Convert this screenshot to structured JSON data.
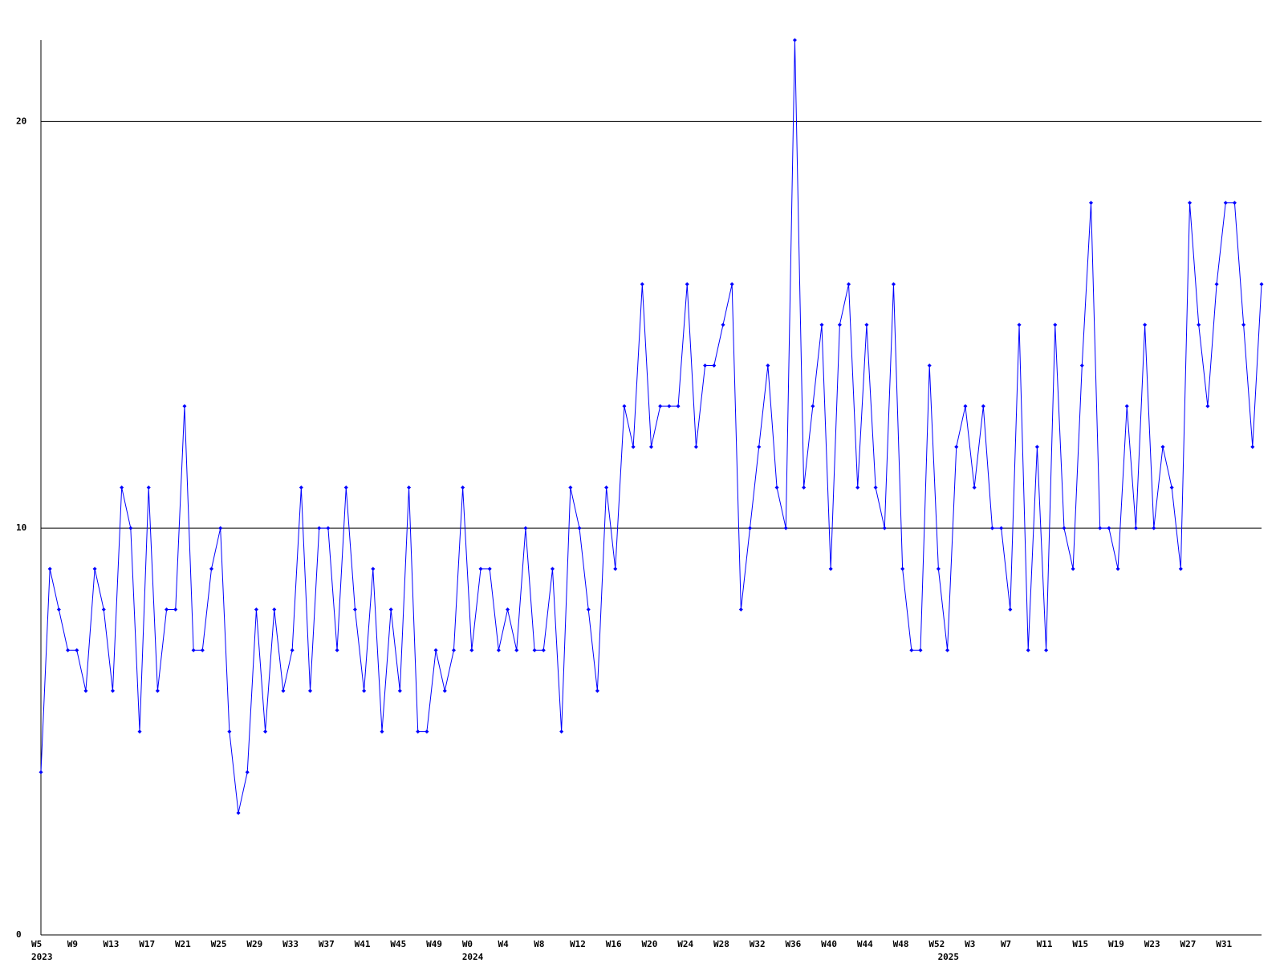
{
  "chart_data": {
    "type": "line",
    "categories": [
      "W5",
      null,
      null,
      null,
      "W9",
      null,
      null,
      null,
      "W13",
      null,
      null,
      null,
      "W17",
      null,
      null,
      null,
      "W21",
      null,
      null,
      null,
      "W25",
      null,
      null,
      null,
      "W29",
      null,
      null,
      null,
      "W33",
      null,
      null,
      null,
      "W37",
      null,
      null,
      null,
      "W41",
      null,
      null,
      null,
      "W45",
      null,
      null,
      null,
      "W49",
      null,
      null,
      null,
      "W0",
      null,
      null,
      null,
      "W4",
      null,
      null,
      null,
      "W8",
      null,
      null,
      null,
      "W12",
      null,
      null,
      null,
      "W16",
      null,
      null,
      null,
      "W20",
      null,
      null,
      null,
      "W24",
      null,
      null,
      null,
      "W28",
      null,
      null,
      null,
      "W32",
      null,
      null,
      null,
      "W36",
      null,
      null,
      null,
      "W40",
      null,
      null,
      null,
      "W44",
      null,
      null,
      null,
      "W48",
      null,
      null,
      null,
      "W52",
      null,
      null,
      null,
      "W3",
      null,
      null,
      null,
      "W7",
      null,
      null,
      null,
      "W11",
      null,
      null,
      null,
      "W15",
      null,
      null,
      null,
      "W19",
      null,
      null,
      null,
      "W23",
      null,
      null,
      null,
      "W27",
      null,
      null,
      null,
      "W31",
      null,
      null,
      null,
      null
    ],
    "category_years": [
      "2023",
      null,
      null,
      null,
      null,
      null,
      null,
      null,
      null,
      null,
      null,
      null,
      null,
      null,
      null,
      null,
      null,
      null,
      null,
      null,
      null,
      null,
      null,
      null,
      null,
      null,
      null,
      null,
      null,
      null,
      null,
      null,
      null,
      null,
      null,
      null,
      null,
      null,
      null,
      null,
      null,
      null,
      null,
      null,
      null,
      null,
      null,
      null,
      "2024",
      null,
      null,
      null,
      null,
      null,
      null,
      null,
      null,
      null,
      null,
      null,
      null,
      null,
      null,
      null,
      null,
      null,
      null,
      null,
      null,
      null,
      null,
      null,
      null,
      null,
      null,
      null,
      null,
      null,
      null,
      null,
      null,
      null,
      null,
      null,
      null,
      null,
      null,
      null,
      null,
      null,
      null,
      null,
      null,
      null,
      null,
      null,
      null,
      null,
      null,
      null,
      null,
      "2025",
      null,
      null,
      null,
      null,
      null,
      null,
      null,
      null,
      null,
      null,
      null,
      null,
      null,
      null,
      null,
      null,
      null,
      null,
      null,
      null,
      null,
      null,
      null,
      null,
      null,
      null,
      null,
      null,
      null,
      null,
      null,
      null,
      null,
      null
    ],
    "series": [
      {
        "color": "#0000ff",
        "values": [
          4,
          9,
          8,
          7,
          7,
          6,
          9,
          8,
          6,
          11,
          10,
          5,
          11,
          6,
          8,
          8,
          13,
          7,
          7,
          9,
          10,
          5,
          3,
          4,
          8,
          5,
          8,
          6,
          7,
          11,
          6,
          10,
          10,
          7,
          11,
          8,
          6,
          9,
          5,
          8,
          6,
          11,
          5,
          5,
          7,
          6,
          7,
          11,
          7,
          9,
          9,
          7,
          8,
          7,
          10,
          7,
          7,
          9,
          5,
          11,
          10,
          8,
          6,
          11,
          9,
          13,
          12,
          16,
          12,
          13,
          13,
          13,
          16,
          12,
          14,
          14,
          15,
          16,
          8,
          10,
          12,
          14,
          11,
          10,
          22,
          11,
          13,
          15,
          9,
          15,
          16,
          11,
          15,
          11,
          10,
          16,
          9,
          7,
          7,
          14,
          9,
          7,
          12,
          13,
          11,
          13,
          10,
          10,
          8,
          15,
          7,
          12,
          7,
          15,
          10,
          9,
          14,
          18,
          10,
          10,
          9,
          13,
          10,
          15,
          10,
          12,
          11,
          9,
          18,
          15,
          13,
          16,
          18,
          18,
          15,
          12,
          16
        ]
      }
    ],
    "ylim": [
      0,
      22
    ],
    "yticks": [
      0,
      10,
      20
    ],
    "grid": true
  }
}
